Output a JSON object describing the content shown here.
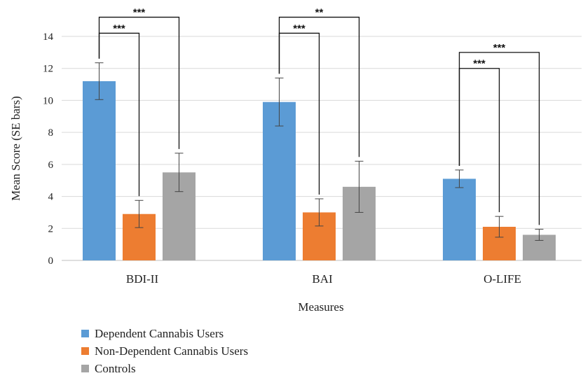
{
  "chart_data": {
    "type": "bar",
    "xlabel": "Measures",
    "ylabel": "Mean Score (SE bars)",
    "ylim": [
      0,
      14
    ],
    "yticks": [
      0,
      2,
      4,
      6,
      8,
      10,
      12,
      14
    ],
    "grid": true,
    "legend_position": "bottom-left",
    "categories": [
      "BDI-II",
      "BAI",
      "O-LIFE"
    ],
    "series": [
      {
        "name": "Dependent Cannabis Users",
        "color": "#5b9bd5",
        "values": [
          11.2,
          9.9,
          5.1
        ],
        "se": [
          1.15,
          1.5,
          0.55
        ]
      },
      {
        "name": "Non-Dependent Cannabis Users",
        "color": "#ed7d31",
        "values": [
          2.9,
          3.0,
          2.1
        ],
        "se": [
          0.85,
          0.85,
          0.65
        ]
      },
      {
        "name": "Controls",
        "color": "#a5a5a5",
        "values": [
          5.5,
          4.6,
          1.6
        ],
        "se": [
          1.2,
          1.6,
          0.35
        ]
      }
    ],
    "significance": [
      {
        "category": "BDI-II",
        "from": "Dependent Cannabis Users",
        "to": "Non-Dependent Cannabis Users",
        "label": "***",
        "level": 14.2
      },
      {
        "category": "BDI-II",
        "from": "Dependent Cannabis Users",
        "to": "Controls",
        "label": "***",
        "level": 15.2
      },
      {
        "category": "BAI",
        "from": "Dependent Cannabis Users",
        "to": "Non-Dependent Cannabis Users",
        "label": "***",
        "level": 14.2
      },
      {
        "category": "BAI",
        "from": "Dependent Cannabis Users",
        "to": "Controls",
        "label": "**",
        "level": 15.2
      },
      {
        "category": "O-LIFE",
        "from": "Dependent Cannabis Users",
        "to": "Non-Dependent Cannabis Users",
        "label": "***",
        "level": 12.0
      },
      {
        "category": "O-LIFE",
        "from": "Dependent Cannabis Users",
        "to": "Controls",
        "label": "***",
        "level": 13.0
      }
    ]
  }
}
